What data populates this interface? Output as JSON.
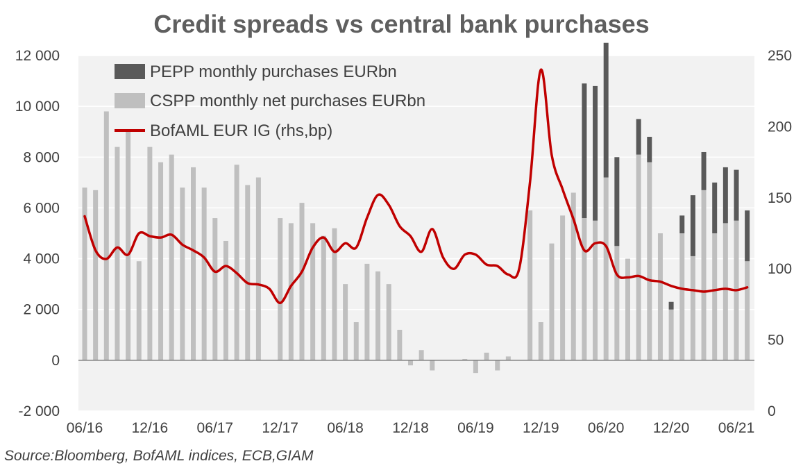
{
  "chart_data": {
    "type": "bar",
    "title": "Credit spreads vs central bank purchases",
    "source": "Source:Bloomberg, BofAML indices, ECB,GIAM",
    "xlabel": "",
    "ylabel_left": "",
    "ylabel_right": "",
    "left_axis": {
      "min": -2000,
      "max": 12000,
      "step": 2000,
      "ticks": [
        "-2 000",
        "0",
        "2 000",
        "4 000",
        "6 000",
        "8 000",
        "10 000",
        "12 000"
      ]
    },
    "right_axis": {
      "min": 0,
      "max": 250,
      "step": 50,
      "ticks": [
        "0",
        "50",
        "100",
        "150",
        "200",
        "250"
      ]
    },
    "x_ticks": [
      "06/16",
      "12/16",
      "06/17",
      "12/17",
      "06/18",
      "12/18",
      "06/19",
      "12/19",
      "06/20",
      "12/20",
      "06/21"
    ],
    "x_tick_positions": [
      0,
      6,
      12,
      18,
      24,
      30,
      36,
      42,
      48,
      54,
      60
    ],
    "months": [
      "06/16",
      "07/16",
      "08/16",
      "09/16",
      "10/16",
      "11/16",
      "12/16",
      "01/17",
      "02/17",
      "03/17",
      "04/17",
      "05/17",
      "06/17",
      "07/17",
      "08/17",
      "09/17",
      "10/17",
      "11/17",
      "12/17",
      "01/18",
      "02/18",
      "03/18",
      "04/18",
      "05/18",
      "06/18",
      "07/18",
      "08/18",
      "09/18",
      "10/18",
      "11/18",
      "12/18",
      "01/19",
      "02/19",
      "03/19",
      "04/19",
      "05/19",
      "06/19",
      "07/19",
      "08/19",
      "09/19",
      "10/19",
      "11/19",
      "12/19",
      "01/20",
      "02/20",
      "03/20",
      "04/20",
      "05/20",
      "06/20",
      "07/20",
      "08/20",
      "09/20",
      "10/20",
      "11/20",
      "12/20",
      "01/21",
      "02/21",
      "03/21",
      "04/21",
      "05/21",
      "06/21",
      "07/21"
    ],
    "grid": true,
    "legend_position": "top-left",
    "colors": {
      "pepp": "#595959",
      "cspp": "#bfbfbf",
      "ig": "#c00000",
      "plot_bg": "#f2f2f2"
    },
    "series": [
      {
        "name": "PEPP monthly purchases EURbn",
        "axis": "left",
        "kind": "bar-stacked",
        "values": [
          0,
          0,
          0,
          0,
          0,
          0,
          0,
          0,
          0,
          0,
          0,
          0,
          0,
          0,
          0,
          0,
          0,
          0,
          0,
          0,
          0,
          0,
          0,
          0,
          0,
          0,
          0,
          0,
          0,
          0,
          0,
          0,
          0,
          0,
          0,
          0,
          0,
          0,
          0,
          0,
          0,
          0,
          0,
          0,
          0,
          0,
          5300,
          5300,
          5300,
          3500,
          0,
          1400,
          1000,
          0,
          300,
          700,
          2400,
          1500,
          2000,
          2200,
          2000,
          2000
        ]
      },
      {
        "name": "CSPP monthly net purchases EURbn",
        "axis": "left",
        "kind": "bar",
        "values": [
          6800,
          6700,
          9800,
          8400,
          9000,
          3900,
          8400,
          7800,
          8100,
          6800,
          7600,
          6800,
          5600,
          4700,
          7700,
          6900,
          7200,
          0,
          5600,
          5400,
          6200,
          5400,
          4900,
          5200,
          3000,
          1500,
          3800,
          3500,
          3000,
          1200,
          -200,
          400,
          -400,
          0,
          0,
          50,
          -500,
          300,
          -400,
          150,
          0,
          5900,
          1500,
          4600,
          5700,
          6600,
          5600,
          5500,
          7200,
          4500,
          4000,
          8100,
          7800,
          5000,
          2000,
          5000,
          4100,
          6700,
          5000,
          5400,
          5500,
          3900
        ]
      },
      {
        "name": "BofAML EUR IG (rhs,bp)",
        "axis": "right",
        "kind": "line",
        "x": [
          0,
          1,
          2,
          3,
          4,
          5,
          6,
          7,
          8,
          9,
          10,
          11,
          12,
          13,
          14,
          15,
          16,
          17,
          18,
          19,
          20,
          21,
          22,
          23,
          24,
          25,
          26,
          27,
          28,
          29,
          30,
          31,
          32,
          33,
          34,
          35,
          36,
          37,
          38,
          39,
          40,
          41,
          42,
          43,
          44,
          45,
          46,
          47,
          48,
          49,
          50,
          51,
          52,
          53,
          54,
          55,
          56,
          57,
          58,
          59,
          60,
          61
        ],
        "values": [
          137,
          113,
          107,
          115,
          110,
          125,
          123,
          122,
          124,
          117,
          113,
          108,
          98,
          102,
          97,
          90,
          89,
          86,
          76,
          88,
          98,
          115,
          122,
          112,
          118,
          115,
          136,
          152,
          145,
          130,
          123,
          112,
          128,
          108,
          100,
          110,
          110,
          103,
          102,
          96,
          100,
          161,
          240,
          180,
          156,
          135,
          113,
          118,
          116,
          96,
          94,
          95,
          92,
          91,
          88,
          86,
          85,
          84,
          85,
          86,
          85,
          87
        ]
      }
    ]
  }
}
